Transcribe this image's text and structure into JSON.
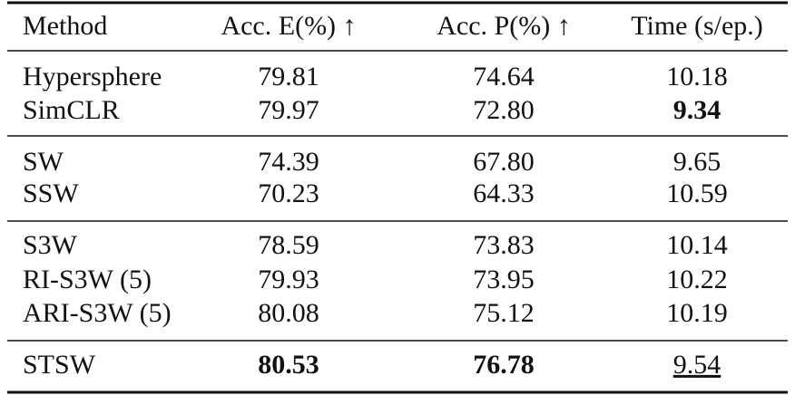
{
  "table": {
    "header": [
      "Method",
      "Acc. E(%) ↑",
      "Acc. P(%) ↑",
      "Time (s/ep.)"
    ],
    "rows": [
      [
        "Hypersphere",
        "79.81",
        "74.64",
        "10.18"
      ],
      [
        "SimCLR",
        "79.97",
        "72.80",
        "9.34"
      ],
      [
        "SW",
        "74.39",
        "67.80",
        "9.65"
      ],
      [
        "SSW",
        "70.23",
        "64.33",
        "10.59"
      ],
      [
        "S3W",
        "78.59",
        "73.83",
        "10.14"
      ],
      [
        "RI-S3W (5)",
        "79.93",
        "73.95",
        "10.22"
      ],
      [
        "ARI-S3W (5)",
        "80.08",
        "75.12",
        "10.19"
      ],
      [
        "STSW",
        "80.53",
        "76.78",
        "9.54"
      ]
    ]
  }
}
